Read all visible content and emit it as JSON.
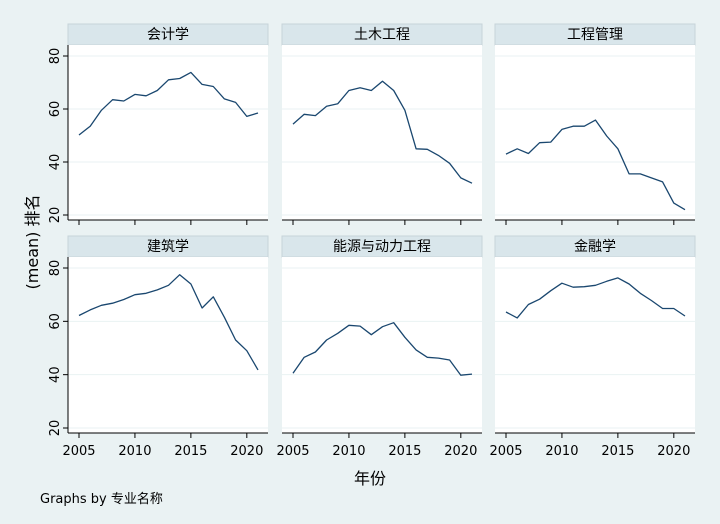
{
  "chart_data": {
    "type": "line",
    "ylabel": "(mean) 排名",
    "xlabel": "年份",
    "note": "Graphs by 专业名称",
    "x": [
      2005,
      2006,
      2007,
      2008,
      2009,
      2010,
      2011,
      2012,
      2013,
      2014,
      2015,
      2016,
      2017,
      2018,
      2019,
      2020,
      2021
    ],
    "xticks": [
      "2005",
      "2010",
      "2015",
      "2020"
    ],
    "yticks": [
      "20",
      "40",
      "60",
      "80"
    ],
    "xlim": [
      2005,
      2021
    ],
    "ylim": [
      20,
      80
    ],
    "grid": true,
    "line_color": "#1a476f",
    "panels": [
      {
        "title": "会计学",
        "values": [
          50.2,
          53.5,
          59.5,
          63.5,
          63.0,
          65.5,
          65.0,
          67.0,
          71.0,
          71.5,
          73.8,
          69.3,
          68.5,
          63.8,
          62.5,
          57.2,
          58.5
        ]
      },
      {
        "title": "土木工程",
        "values": [
          54.3,
          58.0,
          57.5,
          61.0,
          62.0,
          67.0,
          68.0,
          67.0,
          70.5,
          67.0,
          59.5,
          45.0,
          44.8,
          42.5,
          39.5,
          34.0,
          32.0
        ]
      },
      {
        "title": "工程管理",
        "values": [
          43.0,
          45.0,
          43.2,
          47.3,
          47.5,
          52.3,
          53.5,
          53.5,
          55.8,
          49.8,
          45.0,
          35.5,
          35.5,
          34.0,
          32.5,
          24.5,
          22.0
        ]
      },
      {
        "title": "建筑学",
        "values": [
          62.2,
          64.3,
          66.0,
          66.8,
          68.2,
          70.0,
          70.5,
          71.8,
          73.5,
          77.5,
          74.0,
          65.0,
          69.2,
          61.5,
          53.0,
          49.0,
          41.8
        ]
      },
      {
        "title": "能源与动力工程",
        "values": [
          40.5,
          46.5,
          48.5,
          53.0,
          55.5,
          58.5,
          58.2,
          55.0,
          58.0,
          59.5,
          54.0,
          49.3,
          46.5,
          46.2,
          45.5,
          39.8,
          40.2
        ]
      },
      {
        "title": "金融学",
        "values": [
          63.5,
          61.3,
          66.3,
          68.3,
          71.5,
          74.3,
          72.8,
          73.0,
          73.5,
          75.0,
          76.3,
          74.0,
          70.5,
          67.8,
          64.8,
          64.8,
          62.0
        ]
      }
    ]
  }
}
